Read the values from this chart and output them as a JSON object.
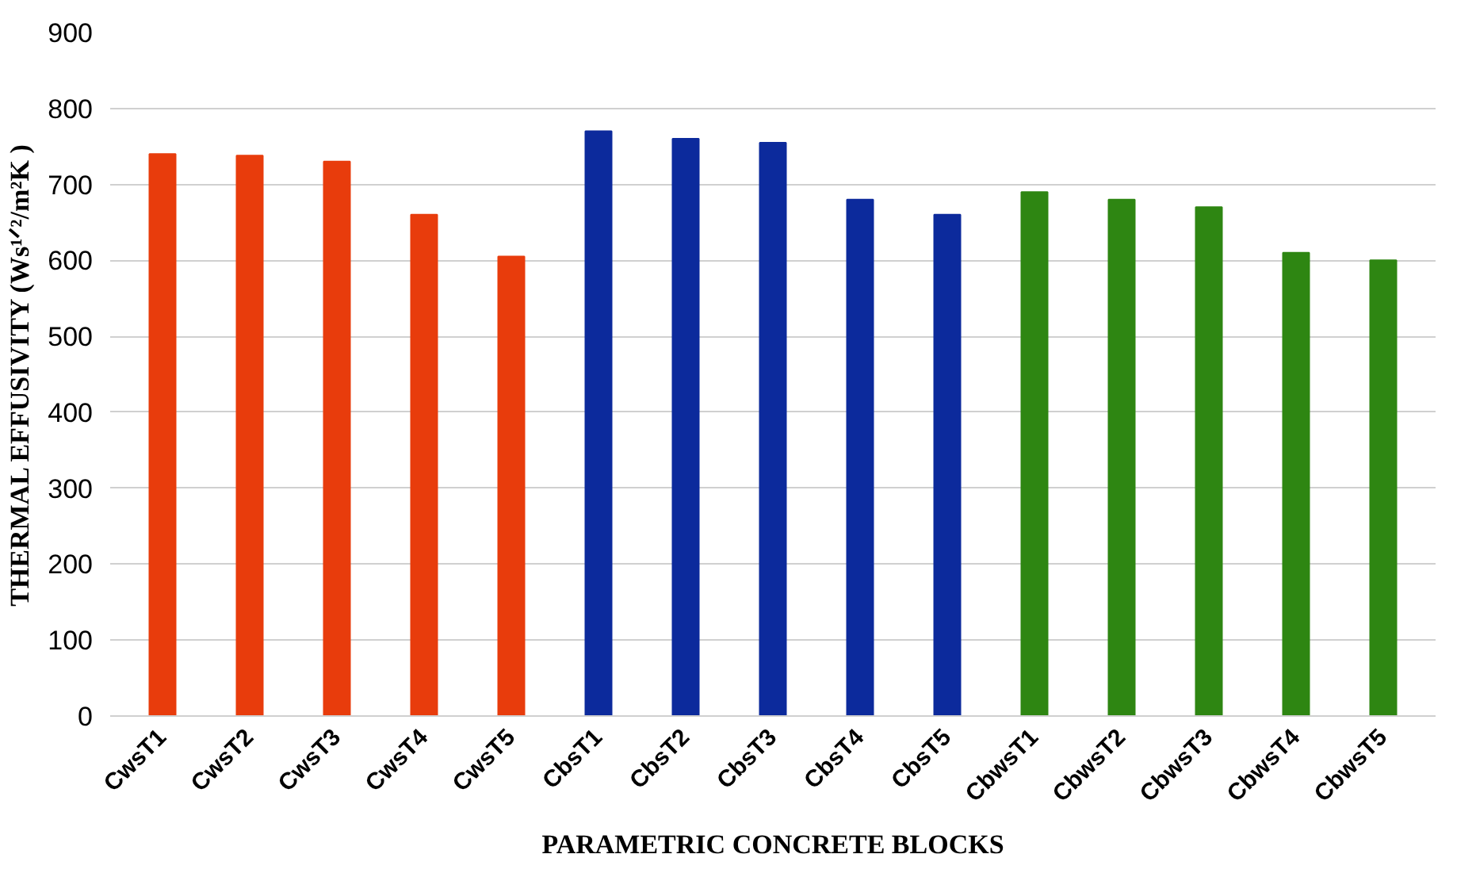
{
  "chart_data": {
    "type": "bar",
    "xlabel": "PARAMETRIC CONCRETE BLOCKS",
    "ylabel": "THERMAL EFFUSIVITY (Ws¹ᐟ²/m²K )",
    "categories": [
      "CwsT1",
      "CwsT2",
      "CwsT3",
      "CwsT4",
      "CwsT5",
      "CbsT1",
      "CbsT2",
      "CbsT3",
      "CbsT4",
      "CbsT5",
      "CbwsT1",
      "CbwsT2",
      "CbwsT3",
      "CbwsT4",
      "CbwsT5"
    ],
    "values": [
      740,
      738,
      730,
      660,
      605,
      770,
      760,
      755,
      680,
      660,
      690,
      680,
      670,
      610,
      600
    ],
    "colors": [
      "#e83c0c",
      "#e83c0c",
      "#e83c0c",
      "#e83c0c",
      "#e83c0c",
      "#0c2a9c",
      "#0c2a9c",
      "#0c2a9c",
      "#0c2a9c",
      "#0c2a9c",
      "#2e8612",
      "#2e8612",
      "#2e8612",
      "#2e8612",
      "#2e8612"
    ],
    "ylim": [
      0,
      900
    ],
    "yticks": [
      0,
      100,
      200,
      300,
      400,
      500,
      600,
      700,
      800,
      900
    ],
    "grid": "y"
  }
}
